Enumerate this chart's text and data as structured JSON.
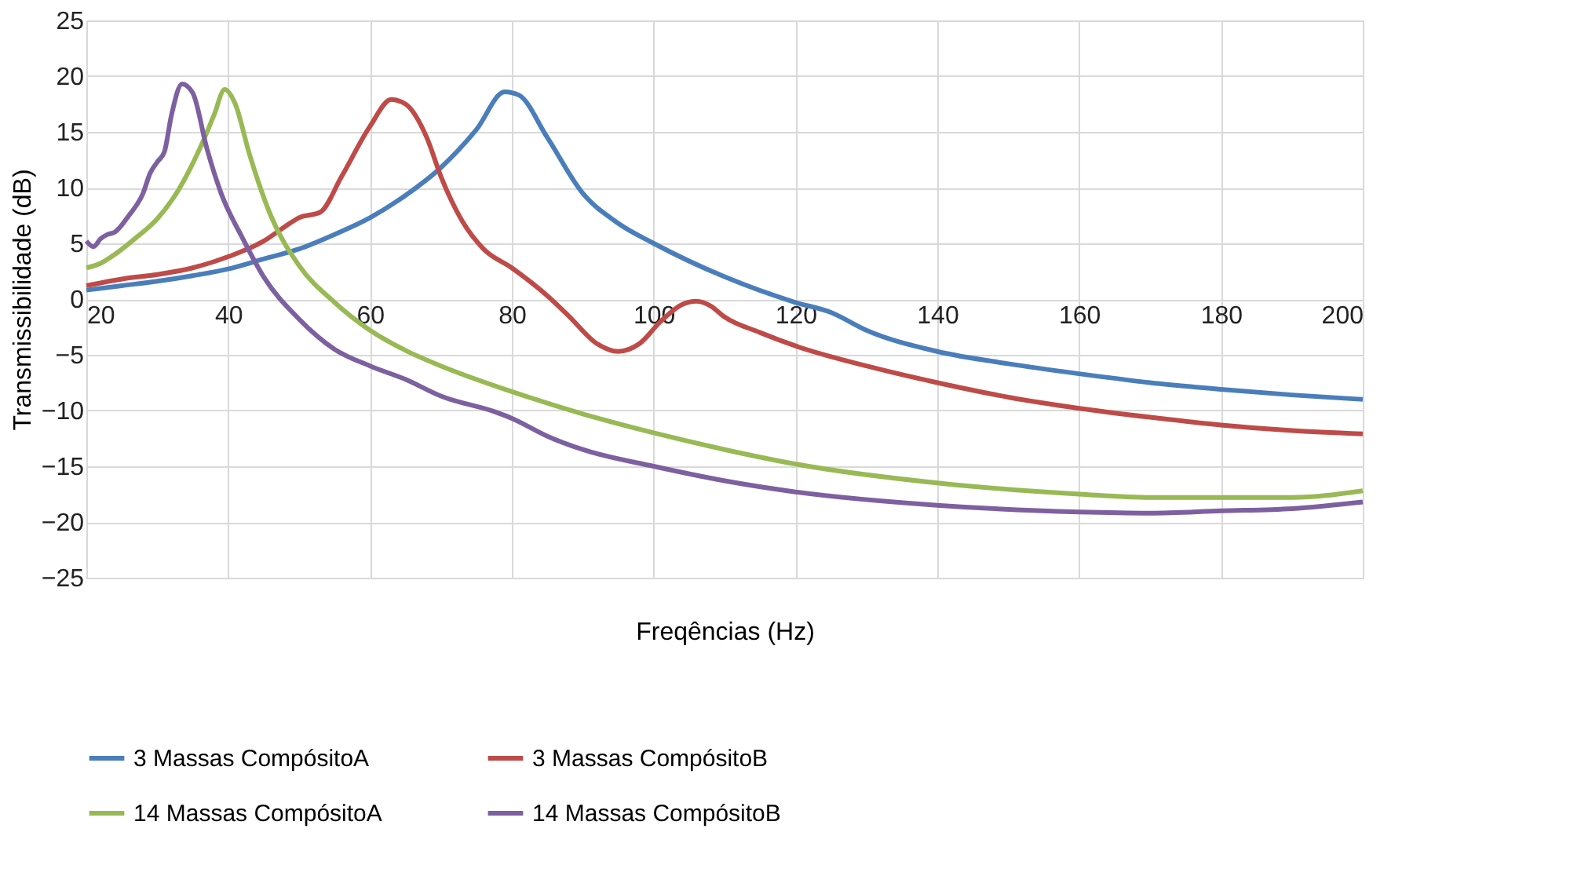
{
  "chart_data": {
    "type": "line",
    "xlabel": "Freqências (Hz)",
    "ylabel": "Transmissibilidade (dB)",
    "xlim": [
      20,
      200
    ],
    "xticks": [
      20,
      40,
      60,
      80,
      100,
      120,
      140,
      160,
      180,
      200
    ],
    "ylim": [
      -25,
      25
    ],
    "yticks": [
      -25,
      -20,
      -15,
      -10,
      -5,
      0,
      5,
      10,
      15,
      20,
      25
    ],
    "grid": true,
    "legend": "bottom",
    "marker": "none",
    "line_style": "solid",
    "series": [
      {
        "name": "3 Massas CompósitoA",
        "color": "#4a7ebb",
        "x": [
          20,
          25,
          30,
          35,
          40,
          45,
          50,
          55,
          60,
          65,
          70,
          75,
          79,
          81,
          85,
          90,
          95,
          100,
          110,
          120,
          125,
          130,
          140,
          150,
          160,
          170,
          180,
          190,
          200
        ],
        "values": [
          0.8,
          1.2,
          1.6,
          2.1,
          2.7,
          3.6,
          4.5,
          5.8,
          7.3,
          9.3,
          11.8,
          15.2,
          18.6,
          18.3,
          14.5,
          9.5,
          6.8,
          5,
          2,
          -0.3,
          -1.2,
          -2.8,
          -4.7,
          -5.8,
          -6.7,
          -7.5,
          -8.1,
          -8.6,
          -9.0
        ]
      },
      {
        "name": "3 Massas CompósitoB",
        "color": "#be4b48",
        "x": [
          20,
          25,
          30,
          35,
          40,
          45,
          48,
          50,
          53,
          56,
          60,
          63,
          65,
          68,
          70,
          73,
          76,
          80,
          85,
          88,
          92,
          95,
          98,
          101,
          104,
          106,
          108,
          110,
          115,
          120,
          130,
          140,
          150,
          160,
          170,
          180,
          190,
          200
        ],
        "values": [
          1.2,
          1.8,
          2.2,
          2.8,
          3.8,
          5.2,
          6.5,
          7.3,
          7.8,
          11,
          15.5,
          17.9,
          17.5,
          14.5,
          11,
          7,
          4.5,
          2.8,
          0.3,
          -1.5,
          -4,
          -4.7,
          -4,
          -2,
          -0.5,
          -0.2,
          -0.6,
          -1.6,
          -3,
          -4.2,
          -6,
          -7.5,
          -8.8,
          -9.8,
          -10.6,
          -11.3,
          -11.8,
          -12.1
        ]
      },
      {
        "name": "14 Massas CompósitoA",
        "color": "#98b954",
        "x": [
          20,
          22,
          24,
          27,
          30,
          33,
          36,
          38,
          39.5,
          41,
          43,
          46,
          50,
          55,
          60,
          65,
          70,
          80,
          90,
          100,
          110,
          120,
          140,
          160,
          170,
          180,
          190,
          200
        ],
        "values": [
          2.8,
          3.2,
          4,
          5.5,
          7.2,
          9.8,
          13.5,
          16.5,
          18.8,
          17.5,
          13,
          7.5,
          3,
          -0.3,
          -2.8,
          -4.6,
          -6,
          -8.3,
          -10.3,
          -12,
          -13.5,
          -14.8,
          -16.5,
          -17.5,
          -17.8,
          -17.8,
          -17.8,
          -17.2
        ]
      },
      {
        "name": "14 Massas CompósitoB",
        "color": "#7d60a0",
        "x": [
          20,
          21,
          22,
          23,
          24,
          26,
          28,
          29,
          30,
          31,
          32,
          33.5,
          35,
          37,
          39,
          42,
          45,
          50,
          55,
          60,
          65,
          70,
          78,
          80,
          85,
          90,
          100,
          110,
          120,
          140,
          160,
          170,
          180,
          190,
          200
        ],
        "values": [
          5.2,
          4.7,
          5.4,
          5.8,
          6,
          7.5,
          9.5,
          11.3,
          12.3,
          13.2,
          16.5,
          19.3,
          18.5,
          13.5,
          9.5,
          5.5,
          2,
          -1.8,
          -4.5,
          -6,
          -7.2,
          -8.7,
          -10.2,
          -10.7,
          -12.3,
          -13.5,
          -15,
          -16.3,
          -17.3,
          -18.5,
          -19.1,
          -19.2,
          -19,
          -18.8,
          -18.2
        ]
      }
    ]
  }
}
